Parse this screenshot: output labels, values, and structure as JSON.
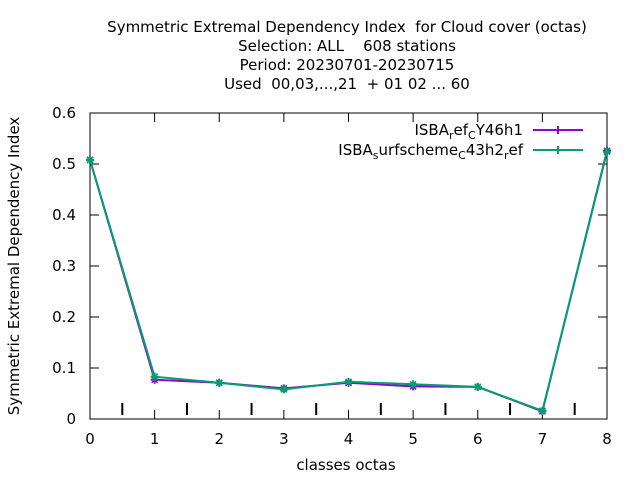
{
  "chart_data": {
    "type": "line",
    "title_lines": [
      "Symmetric Extremal Dependency Index  for Cloud cover (octas)",
      "Selection: ALL    608 stations",
      "Period: 20230701-20230715",
      "Used  00,03,...,21  + 01 02 ... 60"
    ],
    "xlabel": "classes octas",
    "ylabel": "Symmetric Extremal Dependency Index",
    "xlim": [
      0,
      8
    ],
    "ylim": [
      0,
      0.6
    ],
    "x_ticks": [
      0,
      1,
      2,
      3,
      4,
      5,
      6,
      7,
      8
    ],
    "y_ticks": [
      0,
      0.1,
      0.2,
      0.3,
      0.4,
      0.5,
      0.6
    ],
    "y_tick_labels": [
      "0",
      "0.1",
      "0.2",
      "0.3",
      "0.4",
      "0.5",
      "0.6"
    ],
    "legend_position": "top-right",
    "bar_markers_x": [
      0.5,
      1.5,
      2.5,
      3.5,
      4.5,
      5.5,
      6.5,
      7.5
    ],
    "series": [
      {
        "legend_parts": [
          [
            "ISBA",
            ""
          ],
          [
            "r",
            "sub"
          ],
          [
            "ef",
            ""
          ],
          [
            "C",
            "sub"
          ],
          [
            "Y46h1",
            ""
          ]
        ],
        "color": "#9400d3",
        "x": [
          0,
          1,
          2,
          3,
          4,
          5,
          6,
          7,
          8
        ],
        "y": [
          0.508,
          0.077,
          0.071,
          0.06,
          0.071,
          0.064,
          0.063,
          0.015,
          0.526
        ]
      },
      {
        "legend_parts": [
          [
            "ISBA",
            ""
          ],
          [
            "s",
            "sub"
          ],
          [
            "urfscheme",
            ""
          ],
          [
            "C",
            "sub"
          ],
          [
            "43h2",
            ""
          ],
          [
            "r",
            "sub"
          ],
          [
            "ef",
            ""
          ]
        ],
        "color": "#009e73",
        "x": [
          0,
          1,
          2,
          3,
          4,
          5,
          6,
          7,
          8
        ],
        "y": [
          0.508,
          0.083,
          0.071,
          0.058,
          0.073,
          0.068,
          0.063,
          0.016,
          0.524
        ]
      }
    ]
  }
}
